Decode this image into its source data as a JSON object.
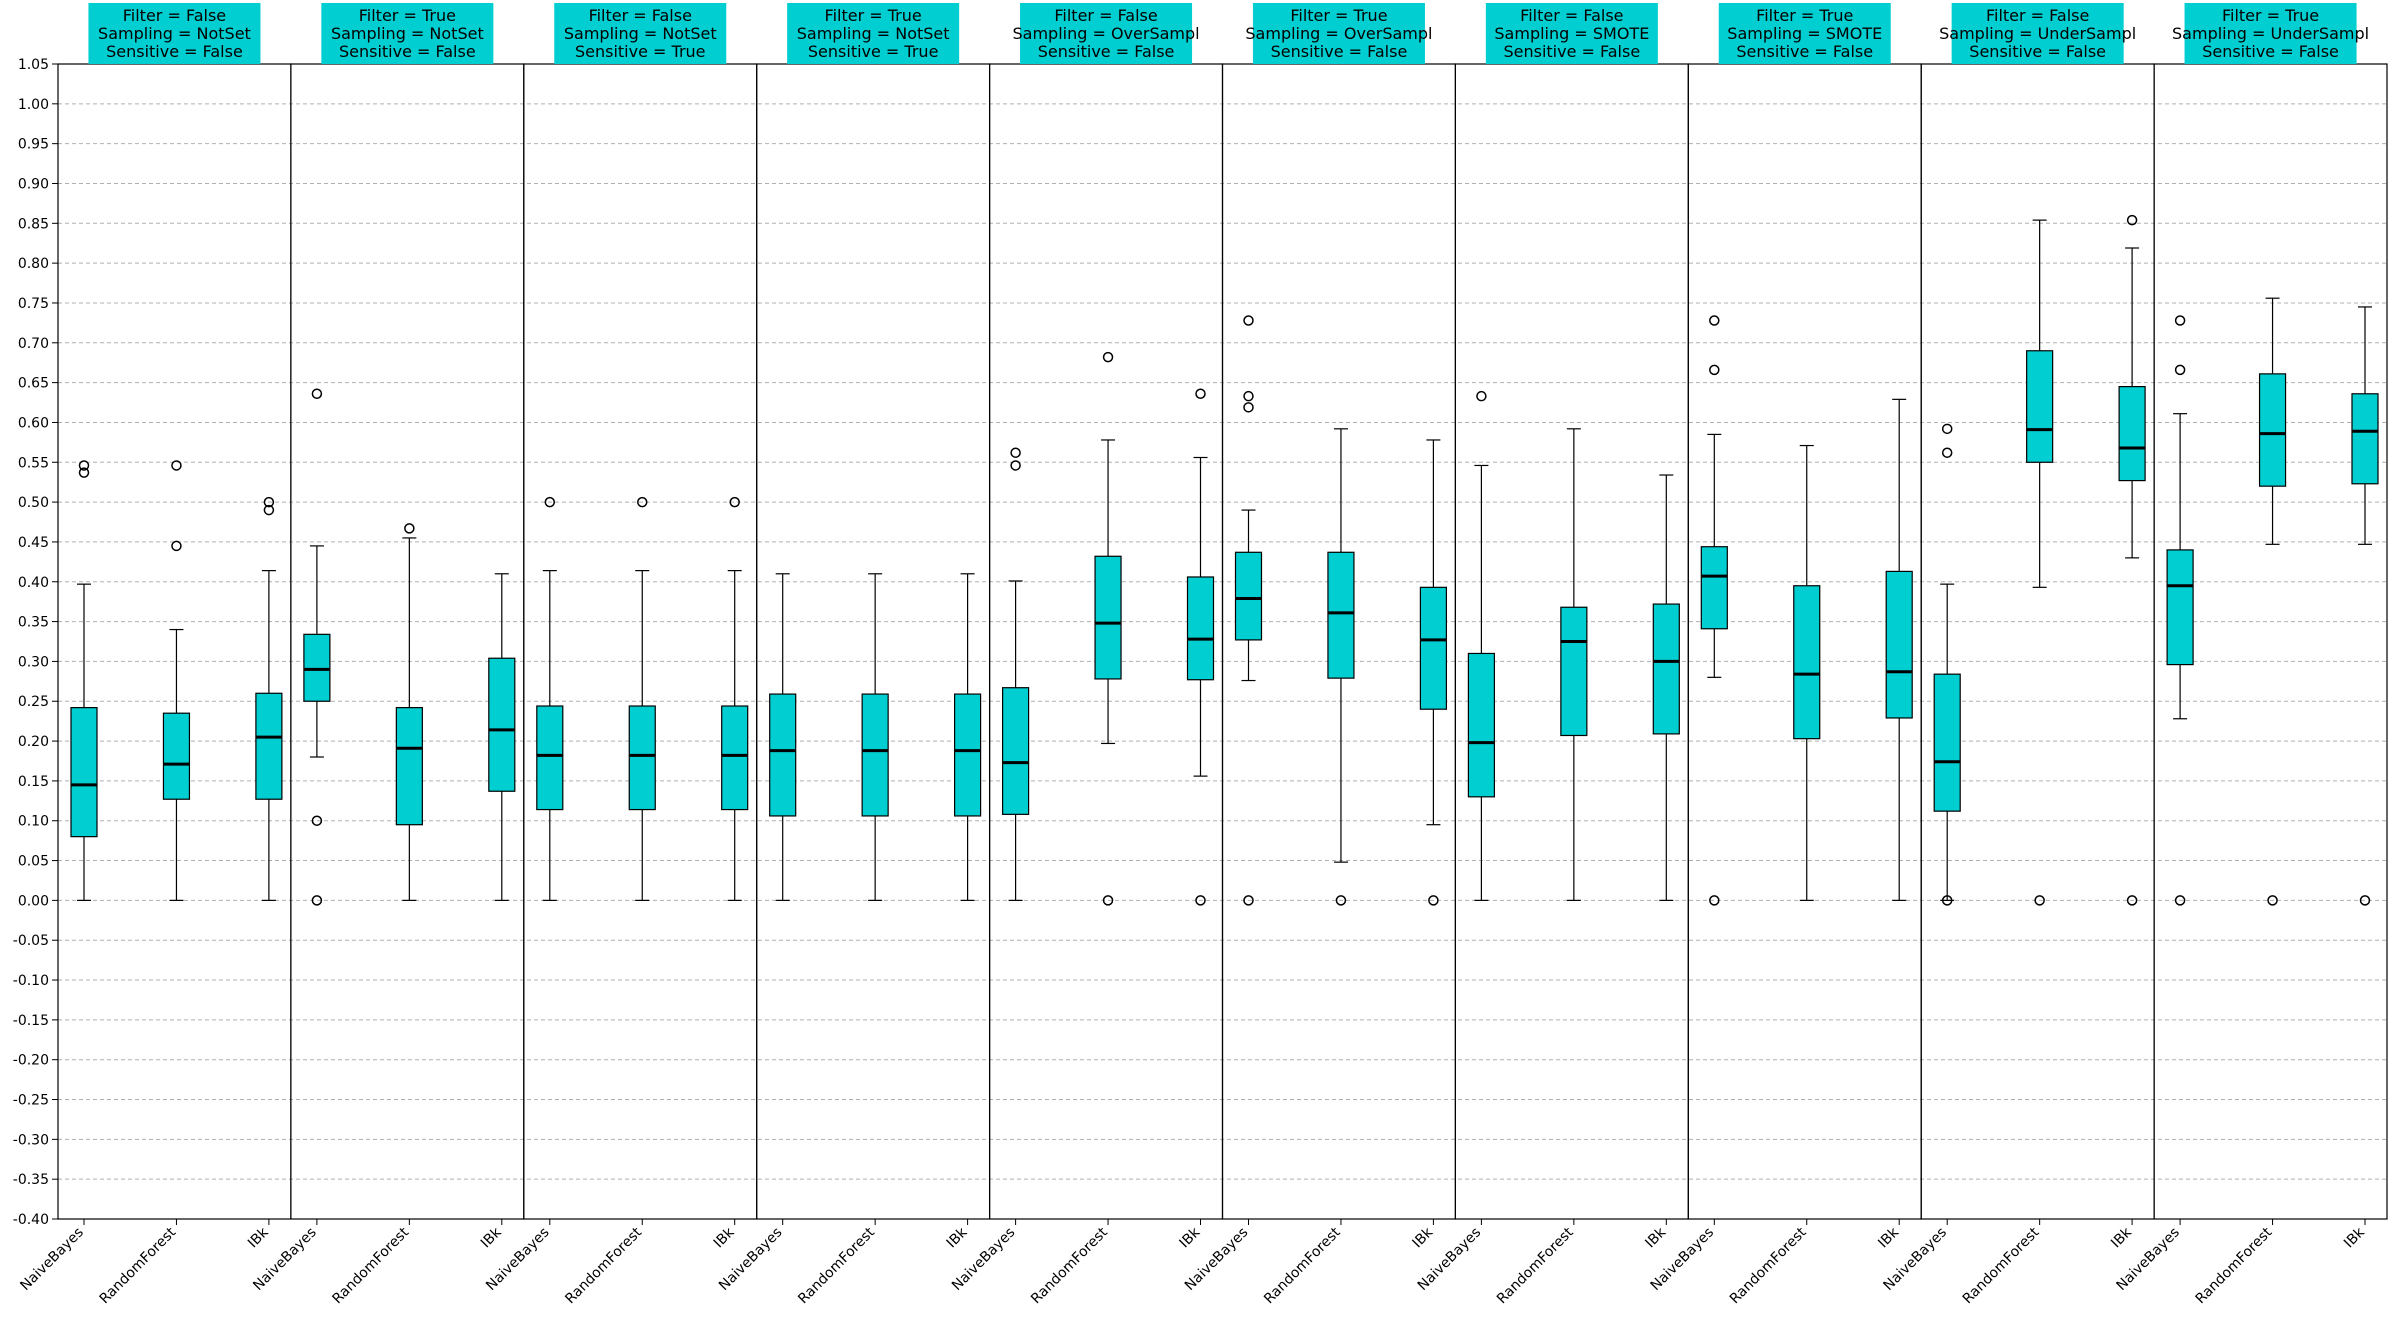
{
  "chart_data": {
    "type": "box",
    "ylim": [
      -0.4,
      1.05
    ],
    "yticks": [
      "1.05",
      "1.00",
      "0.95",
      "0.90",
      "0.85",
      "0.80",
      "0.75",
      "0.70",
      "0.65",
      "0.60",
      "0.55",
      "0.50",
      "0.45",
      "0.40",
      "0.35",
      "0.30",
      "0.25",
      "0.20",
      "0.15",
      "0.10",
      "0.05",
      "0.00",
      "-0.05",
      "-0.10",
      "-0.15",
      "-0.20",
      "-0.25",
      "-0.30",
      "-0.35",
      "-0.40"
    ],
    "grid": "horizontal-dashed",
    "box_color": "#00CED1",
    "header_color": "#00CED1",
    "categories": [
      "NaiveBayes",
      "RandomForest",
      "IBk"
    ],
    "panels": [
      {
        "title": [
          "Filter = False",
          "Sampling = NotSet",
          "Sensitive = False"
        ],
        "boxes": [
          {
            "label": "NaiveBayes",
            "whislo": 0.0,
            "q1": 0.08,
            "med": 0.145,
            "q3": 0.242,
            "whishi": 0.397,
            "fliers": [
              0.546,
              0.537
            ]
          },
          {
            "label": "RandomForest",
            "whislo": 0.0,
            "q1": 0.127,
            "med": 0.171,
            "q3": 0.235,
            "whishi": 0.34,
            "fliers": [
              0.546,
              0.445
            ]
          },
          {
            "label": "IBk",
            "whislo": 0.0,
            "q1": 0.127,
            "med": 0.205,
            "q3": 0.26,
            "whishi": 0.414,
            "fliers": [
              0.5,
              0.49
            ]
          }
        ]
      },
      {
        "title": [
          "Filter = True",
          "Sampling = NotSet",
          "Sensitive = False"
        ],
        "boxes": [
          {
            "label": "NaiveBayes",
            "whislo": 0.18,
            "q1": 0.25,
            "med": 0.29,
            "q3": 0.334,
            "whishi": 0.445,
            "fliers": [
              0.636,
              0.1,
              0.0
            ]
          },
          {
            "label": "RandomForest",
            "whislo": 0.0,
            "q1": 0.095,
            "med": 0.191,
            "q3": 0.242,
            "whishi": 0.455,
            "fliers": [
              0.467
            ]
          },
          {
            "label": "IBk",
            "whislo": 0.0,
            "q1": 0.137,
            "med": 0.214,
            "q3": 0.304,
            "whishi": 0.41,
            "fliers": []
          }
        ]
      },
      {
        "title": [
          "Filter = False",
          "Sampling = NotSet",
          "Sensitive = True"
        ],
        "boxes": [
          {
            "label": "NaiveBayes",
            "whislo": 0.0,
            "q1": 0.114,
            "med": 0.182,
            "q3": 0.244,
            "whishi": 0.414,
            "fliers": [
              0.5
            ]
          },
          {
            "label": "RandomForest",
            "whislo": 0.0,
            "q1": 0.114,
            "med": 0.182,
            "q3": 0.244,
            "whishi": 0.414,
            "fliers": [
              0.5
            ]
          },
          {
            "label": "IBk",
            "whislo": 0.0,
            "q1": 0.114,
            "med": 0.182,
            "q3": 0.244,
            "whishi": 0.414,
            "fliers": [
              0.5
            ]
          }
        ]
      },
      {
        "title": [
          "Filter = True",
          "Sampling = NotSet",
          "Sensitive = True"
        ],
        "boxes": [
          {
            "label": "NaiveBayes",
            "whislo": 0.0,
            "q1": 0.106,
            "med": 0.188,
            "q3": 0.259,
            "whishi": 0.41,
            "fliers": []
          },
          {
            "label": "RandomForest",
            "whislo": 0.0,
            "q1": 0.106,
            "med": 0.188,
            "q3": 0.259,
            "whishi": 0.41,
            "fliers": []
          },
          {
            "label": "IBk",
            "whislo": 0.0,
            "q1": 0.106,
            "med": 0.188,
            "q3": 0.259,
            "whishi": 0.41,
            "fliers": []
          }
        ]
      },
      {
        "title": [
          "Filter = False",
          "Sampling = OverSampl",
          "Sensitive = False"
        ],
        "boxes": [
          {
            "label": "NaiveBayes",
            "whislo": 0.0,
            "q1": 0.108,
            "med": 0.173,
            "q3": 0.267,
            "whishi": 0.401,
            "fliers": [
              0.562,
              0.546
            ]
          },
          {
            "label": "RandomForest",
            "whislo": 0.197,
            "q1": 0.278,
            "med": 0.348,
            "q3": 0.432,
            "whishi": 0.578,
            "fliers": [
              0.682,
              0.0
            ]
          },
          {
            "label": "IBk",
            "whislo": 0.156,
            "q1": 0.277,
            "med": 0.328,
            "q3": 0.406,
            "whishi": 0.556,
            "fliers": [
              0.636,
              0.0
            ]
          }
        ]
      },
      {
        "title": [
          "Filter = True",
          "Sampling = OverSampl",
          "Sensitive = False"
        ],
        "boxes": [
          {
            "label": "NaiveBayes",
            "whislo": 0.276,
            "q1": 0.327,
            "med": 0.379,
            "q3": 0.437,
            "whishi": 0.49,
            "fliers": [
              0.728,
              0.633,
              0.619,
              0.0
            ]
          },
          {
            "label": "RandomForest",
            "whislo": 0.048,
            "q1": 0.279,
            "med": 0.361,
            "q3": 0.437,
            "whishi": 0.592,
            "fliers": [
              0.0
            ]
          },
          {
            "label": "IBk",
            "whislo": 0.095,
            "q1": 0.24,
            "med": 0.327,
            "q3": 0.393,
            "whishi": 0.578,
            "fliers": [
              0.0
            ]
          }
        ]
      },
      {
        "title": [
          "Filter = False",
          "Sampling = SMOTE",
          "Sensitive = False"
        ],
        "boxes": [
          {
            "label": "NaiveBayes",
            "whislo": 0.0,
            "q1": 0.13,
            "med": 0.198,
            "q3": 0.31,
            "whishi": 0.546,
            "fliers": [
              0.633
            ]
          },
          {
            "label": "RandomForest",
            "whislo": 0.0,
            "q1": 0.207,
            "med": 0.325,
            "q3": 0.368,
            "whishi": 0.592,
            "fliers": []
          },
          {
            "label": "IBk",
            "whislo": 0.0,
            "q1": 0.209,
            "med": 0.3,
            "q3": 0.372,
            "whishi": 0.534,
            "fliers": []
          }
        ]
      },
      {
        "title": [
          "Filter = True",
          "Sampling = SMOTE",
          "Sensitive = False"
        ],
        "boxes": [
          {
            "label": "NaiveBayes",
            "whislo": 0.28,
            "q1": 0.341,
            "med": 0.407,
            "q3": 0.444,
            "whishi": 0.585,
            "fliers": [
              0.728,
              0.666,
              0.0
            ]
          },
          {
            "label": "RandomForest",
            "whislo": 0.0,
            "q1": 0.203,
            "med": 0.284,
            "q3": 0.395,
            "whishi": 0.571,
            "fliers": []
          },
          {
            "label": "IBk",
            "whislo": 0.0,
            "q1": 0.229,
            "med": 0.287,
            "q3": 0.413,
            "whishi": 0.629,
            "fliers": []
          }
        ]
      },
      {
        "title": [
          "Filter = False",
          "Sampling = UnderSampl",
          "Sensitive = False"
        ],
        "boxes": [
          {
            "label": "NaiveBayes",
            "whislo": 0.0,
            "q1": 0.112,
            "med": 0.174,
            "q3": 0.284,
            "whishi": 0.397,
            "fliers": [
              0.592,
              0.562,
              0.0
            ]
          },
          {
            "label": "RandomForest",
            "whislo": 0.393,
            "q1": 0.55,
            "med": 0.591,
            "q3": 0.69,
            "whishi": 0.854,
            "fliers": [
              0.0
            ]
          },
          {
            "label": "IBk",
            "whislo": 0.43,
            "q1": 0.527,
            "med": 0.568,
            "q3": 0.645,
            "whishi": 0.819,
            "fliers": [
              0.854,
              0.0
            ]
          }
        ]
      },
      {
        "title": [
          "Filter = True",
          "Sampling = UnderSampl",
          "Sensitive = False"
        ],
        "boxes": [
          {
            "label": "NaiveBayes",
            "whislo": 0.228,
            "q1": 0.296,
            "med": 0.395,
            "q3": 0.44,
            "whishi": 0.611,
            "fliers": [
              0.728,
              0.666,
              0.0
            ]
          },
          {
            "label": "RandomForest",
            "whislo": 0.447,
            "q1": 0.52,
            "med": 0.586,
            "q3": 0.661,
            "whishi": 0.756,
            "fliers": [
              0.0
            ]
          },
          {
            "label": "IBk",
            "whislo": 0.447,
            "q1": 0.523,
            "med": 0.589,
            "q3": 0.636,
            "whishi": 0.745,
            "fliers": [
              0.0
            ]
          }
        ]
      }
    ]
  }
}
